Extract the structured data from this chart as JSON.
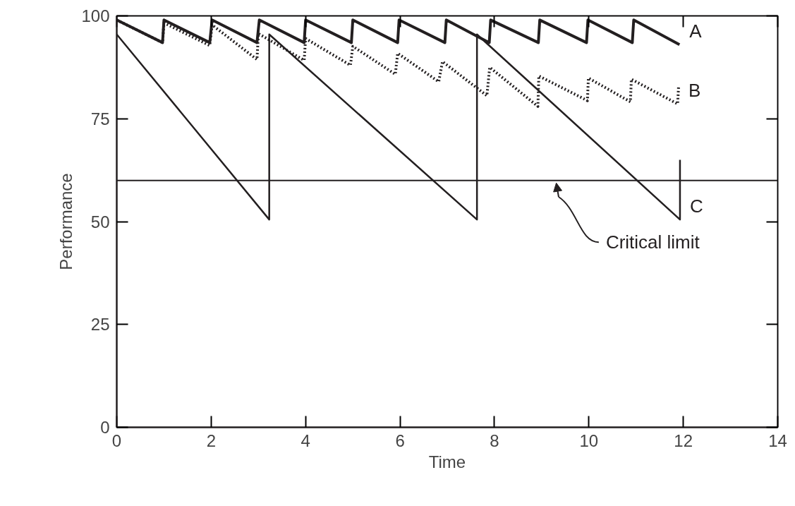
{
  "chart_data": {
    "type": "line",
    "xlabel": "Time",
    "ylabel": "Performance",
    "xlim": [
      0,
      14
    ],
    "xticks": [
      0,
      2,
      4,
      6,
      8,
      10,
      12,
      14
    ],
    "ylim": [
      0,
      100
    ],
    "yticks": [
      0,
      25,
      50,
      75,
      100
    ],
    "grid": false,
    "marker": "none",
    "series": [
      {
        "name": "A",
        "color": "#231f20",
        "line_style": "solid",
        "x": [
          0,
          0.97,
          1.0,
          1.97,
          2.02,
          2.97,
          3.02,
          3.97,
          4.0,
          4.97,
          5.0,
          5.95,
          5.98,
          6.95,
          6.98,
          7.89,
          7.92,
          8.93,
          8.96,
          9.95,
          9.98,
          10.92,
          10.95,
          11.92
        ],
        "values": [
          99,
          93.5,
          99,
          93.5,
          99,
          93.5,
          99,
          93.5,
          99,
          93.5,
          99,
          93.5,
          99,
          93.5,
          99,
          93.5,
          99,
          93.5,
          99,
          93.5,
          99,
          93.5,
          99,
          93
        ]
      },
      {
        "name": "B",
        "color": "#231f20",
        "line_style": "dotted",
        "x": [
          0,
          0.97,
          1.0,
          1.97,
          2.02,
          2.97,
          3.0,
          3.97,
          4.0,
          4.95,
          5.0,
          5.9,
          5.95,
          6.82,
          6.9,
          7.84,
          7.9,
          8.92,
          8.94,
          9.97,
          9.99,
          10.88,
          10.9,
          11.88,
          11.9
        ],
        "values": [
          99,
          93.5,
          98.3,
          92.8,
          97.8,
          89.4,
          95.7,
          89.2,
          94.5,
          88,
          92.6,
          85.8,
          90.9,
          84,
          88.9,
          80.6,
          87.5,
          78,
          85.4,
          79.4,
          84.9,
          79.1,
          84.6,
          78.6,
          82.8
        ]
      },
      {
        "name": "C",
        "color": "#231f20",
        "line_style": "solid",
        "x": [
          0,
          3.23,
          3.23,
          7.63,
          7.63,
          11.93,
          11.93
        ],
        "values": [
          95.5,
          50.5,
          95.5,
          50.5,
          95.5,
          50.5,
          65
        ]
      }
    ],
    "ref_lines": [
      {
        "axis": "y",
        "value": 60,
        "label": "Critical limit",
        "color": "#231f20",
        "line_style": "solid"
      }
    ]
  }
}
